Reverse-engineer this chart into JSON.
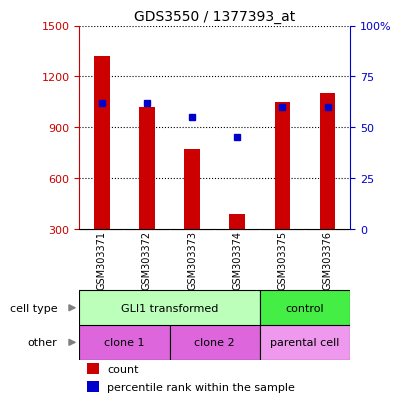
{
  "title": "GDS3550 / 1377393_at",
  "samples": [
    "GSM303371",
    "GSM303372",
    "GSM303373",
    "GSM303374",
    "GSM303375",
    "GSM303376"
  ],
  "bar_values": [
    1320,
    1020,
    770,
    390,
    1050,
    1100
  ],
  "percentile_values": [
    62,
    62,
    55,
    45,
    60,
    60
  ],
  "ylim_left": [
    300,
    1500
  ],
  "ylim_right": [
    0,
    100
  ],
  "yticks_left": [
    300,
    600,
    900,
    1200,
    1500
  ],
  "yticks_right": [
    0,
    25,
    50,
    75,
    100
  ],
  "bar_color": "#cc0000",
  "percentile_color": "#0000cc",
  "bar_bottom": 300,
  "cell_type_groups": [
    {
      "label": "GLI1 transformed",
      "start": 0,
      "end": 3,
      "color": "#bbffbb"
    },
    {
      "label": "control",
      "start": 4,
      "end": 5,
      "color": "#44ee44"
    }
  ],
  "other_groups": [
    {
      "label": "clone 1",
      "start": 0,
      "end": 1,
      "color": "#dd66dd"
    },
    {
      "label": "clone 2",
      "start": 2,
      "end": 3,
      "color": "#dd66dd"
    },
    {
      "label": "parental cell",
      "start": 4,
      "end": 5,
      "color": "#ee99ee"
    }
  ],
  "legend_count_color": "#cc0000",
  "legend_percentile_color": "#0000cc",
  "left_axis_color": "#cc0000",
  "right_axis_color": "#0000cc",
  "background_color": "#ffffff",
  "plot_bg_color": "#ffffff",
  "tick_label_color_left": "#cc0000",
  "tick_label_color_right": "#0000cc",
  "sample_label_bg": "#cccccc",
  "border_color": "#000000"
}
